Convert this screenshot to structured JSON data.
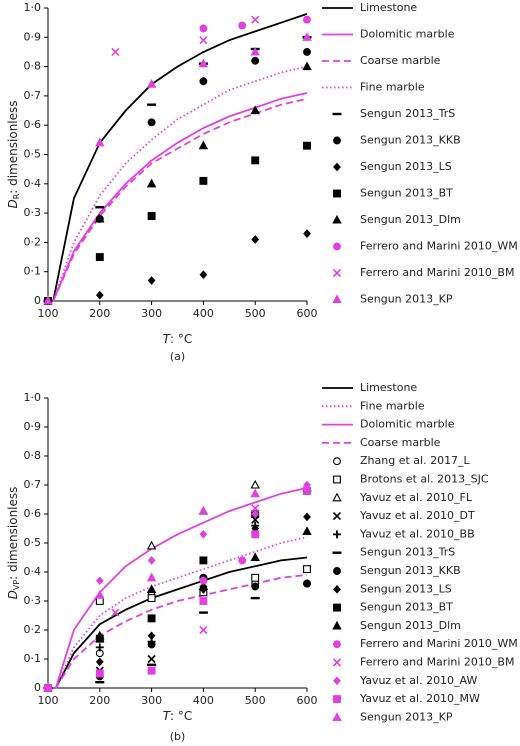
{
  "chart_data": [
    {
      "type": "scatter",
      "y_label": {
        "symbol": "D",
        "subscript": "R",
        "text": ": dimensionless"
      },
      "x_label": {
        "symbol": "T",
        "text": ": °C"
      },
      "caption": "(a)",
      "xlim": [
        100,
        600
      ],
      "ylim": [
        0,
        1
      ],
      "xticks": [
        100,
        200,
        300,
        400,
        500,
        600
      ],
      "yticks": [
        0,
        {
          "value": 0.1,
          "label": "0·1"
        },
        {
          "value": 0.2,
          "label": "0·2"
        },
        {
          "value": 0.3,
          "label": "0·3"
        },
        {
          "value": 0.4,
          "label": "0·4"
        },
        {
          "value": 0.5,
          "label": "0·5"
        },
        {
          "value": 0.6,
          "label": "0·6"
        },
        {
          "value": 0.7,
          "label": "0·7"
        },
        {
          "value": 0.8,
          "label": "0·8"
        },
        {
          "value": 0.9,
          "label": "0·9"
        },
        {
          "value": 1,
          "label": "1·0"
        }
      ],
      "series": [
        {
          "name": "Limestone",
          "color": "#000000",
          "style": "line",
          "dash": "solid",
          "x": [
            110,
            150,
            200,
            250,
            300,
            350,
            400,
            450,
            500,
            550,
            600
          ],
          "values": [
            0,
            0.35,
            0.54,
            0.65,
            0.74,
            0.8,
            0.85,
            0.89,
            0.92,
            0.95,
            0.98
          ]
        },
        {
          "name": "Dolomitic marble",
          "color": "#e040e0",
          "style": "line",
          "dash": "solid",
          "x": [
            110,
            150,
            200,
            250,
            300,
            350,
            400,
            450,
            500,
            550,
            600
          ],
          "values": [
            0,
            0.17,
            0.3,
            0.4,
            0.48,
            0.54,
            0.59,
            0.63,
            0.66,
            0.69,
            0.71
          ]
        },
        {
          "name": "Coarse marble",
          "color": "#e040e0",
          "style": "line",
          "dash": "dashed",
          "x": [
            110,
            150,
            200,
            250,
            300,
            350,
            400,
            450,
            500,
            550,
            600
          ],
          "values": [
            0,
            0.16,
            0.29,
            0.39,
            0.47,
            0.52,
            0.57,
            0.61,
            0.64,
            0.67,
            0.69
          ]
        },
        {
          "name": "Fine marble",
          "color": "#e040e0",
          "style": "line",
          "dash": "dotted",
          "x": [
            110,
            150,
            200,
            250,
            300,
            350,
            400,
            450,
            500,
            550,
            600
          ],
          "values": [
            0,
            0.2,
            0.36,
            0.47,
            0.55,
            0.62,
            0.67,
            0.72,
            0.75,
            0.78,
            0.8
          ]
        },
        {
          "name": "Sengun 2013_TrS",
          "color": "#000000",
          "marker": "dash",
          "filled": true,
          "x": [
            100,
            200,
            300,
            400,
            500,
            600
          ],
          "values": [
            0,
            0.32,
            0.67,
            0.81,
            0.86,
            0.9
          ]
        },
        {
          "name": "Sengun 2013_KKB",
          "color": "#000000",
          "marker": "circle",
          "filled": true,
          "x": [
            100,
            200,
            300,
            400,
            500,
            600
          ],
          "values": [
            0,
            0.28,
            0.61,
            0.75,
            0.82,
            0.85
          ]
        },
        {
          "name": "Sengun 2013_LS",
          "color": "#000000",
          "marker": "diamond",
          "filled": true,
          "x": [
            100,
            200,
            300,
            400,
            500,
            600
          ],
          "values": [
            0,
            0.02,
            0.07,
            0.09,
            0.21,
            0.23
          ]
        },
        {
          "name": "Sengun 2013_BT",
          "color": "#000000",
          "marker": "square",
          "filled": true,
          "x": [
            100,
            200,
            300,
            400,
            500,
            600
          ],
          "values": [
            0,
            0.15,
            0.29,
            0.41,
            0.48,
            0.53
          ]
        },
        {
          "name": "Sengun 2013_Dlm",
          "color": "#000000",
          "marker": "triangle",
          "filled": true,
          "x": [
            100,
            200,
            300,
            400,
            500,
            600
          ],
          "values": [
            0,
            0.28,
            0.4,
            0.53,
            0.65,
            0.8
          ]
        },
        {
          "name": "Ferrero and Marini 2010_WM",
          "color": "#e040e0",
          "marker": "circle",
          "filled": true,
          "x": [
            400,
            475,
            600
          ],
          "values": [
            0.93,
            0.94,
            0.96
          ]
        },
        {
          "name": "Ferrero and Marini 2010_BM",
          "color": "#e040e0",
          "marker": "x",
          "filled": true,
          "x": [
            230,
            400,
            500
          ],
          "values": [
            0.85,
            0.89,
            0.96
          ]
        },
        {
          "name": "Sengun 2013_KP",
          "color": "#e040e0",
          "marker": "triangle",
          "filled": true,
          "x": [
            100,
            200,
            300,
            400,
            500,
            600
          ],
          "values": [
            0,
            0.54,
            0.74,
            0.81,
            0.85,
            0.9
          ]
        }
      ]
    },
    {
      "type": "scatter",
      "y_label": {
        "symbol": "D",
        "subscript": "VP",
        "text": ": dimensionless"
      },
      "x_label": {
        "symbol": "T",
        "text": ": °C"
      },
      "caption": "(b)",
      "xlim": [
        100,
        600
      ],
      "ylim": [
        0,
        1
      ],
      "xticks": [
        100,
        200,
        300,
        400,
        500,
        600
      ],
      "yticks": [
        0,
        {
          "value": 0.1,
          "label": "0·1"
        },
        {
          "value": 0.2,
          "label": "0·2"
        },
        {
          "value": 0.3,
          "label": "0·3"
        },
        {
          "value": 0.4,
          "label": "0·4"
        },
        {
          "value": 0.5,
          "label": "0·5"
        },
        {
          "value": 0.6,
          "label": "0·6"
        },
        {
          "value": 0.7,
          "label": "0·7"
        },
        {
          "value": 0.8,
          "label": "0·8"
        },
        {
          "value": 0.9,
          "label": "0·9"
        },
        {
          "value": 1,
          "label": "1·0"
        }
      ],
      "series": [
        {
          "name": "Limestone",
          "color": "#000000",
          "style": "line",
          "dash": "solid",
          "x": [
            115,
            150,
            200,
            250,
            300,
            350,
            400,
            450,
            500,
            550,
            600
          ],
          "values": [
            0,
            0.12,
            0.22,
            0.27,
            0.31,
            0.34,
            0.37,
            0.4,
            0.42,
            0.44,
            0.45
          ]
        },
        {
          "name": "Fine marble",
          "color": "#e040e0",
          "style": "line",
          "dash": "dotted",
          "x": [
            115,
            150,
            200,
            250,
            300,
            350,
            400,
            450,
            500,
            550,
            600
          ],
          "values": [
            0,
            0.14,
            0.25,
            0.31,
            0.35,
            0.38,
            0.41,
            0.44,
            0.47,
            0.5,
            0.52
          ]
        },
        {
          "name": "Dolomitic marble",
          "color": "#e040e0",
          "style": "line",
          "dash": "solid",
          "x": [
            115,
            150,
            200,
            250,
            300,
            350,
            400,
            450,
            500,
            550,
            600
          ],
          "values": [
            0,
            0.2,
            0.33,
            0.42,
            0.48,
            0.53,
            0.57,
            0.61,
            0.64,
            0.67,
            0.69
          ]
        },
        {
          "name": "Coarse marble",
          "color": "#e040e0",
          "style": "line",
          "dash": "dashed",
          "x": [
            115,
            150,
            200,
            250,
            300,
            350,
            400,
            450,
            500,
            550,
            600
          ],
          "values": [
            0,
            0.1,
            0.18,
            0.23,
            0.27,
            0.3,
            0.32,
            0.34,
            0.36,
            0.38,
            0.39
          ]
        },
        {
          "name": "Zhang et al. 2017_L",
          "color": "#000000",
          "marker": "circle",
          "filled": false,
          "x": [
            100,
            200,
            300,
            400,
            500,
            600
          ],
          "values": [
            0,
            0.12,
            0.32,
            0.38,
            0.36,
            0.36
          ]
        },
        {
          "name": "Brotons et al. 2013_SJC",
          "color": "#000000",
          "marker": "square",
          "filled": false,
          "x": [
            100,
            200,
            300,
            400,
            500,
            600
          ],
          "values": [
            0,
            0.3,
            0.31,
            0.33,
            0.38,
            0.41
          ]
        },
        {
          "name": "Yavuz et al. 2010_FL",
          "color": "#000000",
          "marker": "triangle",
          "filled": false,
          "x": [
            100,
            200,
            300,
            400,
            500,
            600
          ],
          "values": [
            0,
            0.17,
            0.49,
            0.61,
            0.7,
            0.69
          ]
        },
        {
          "name": "Yavuz et al. 2010_DT",
          "color": "#000000",
          "marker": "x",
          "filled": true,
          "x": [
            100,
            200,
            300,
            400,
            500
          ],
          "values": [
            0,
            0.06,
            0.1,
            0.36,
            0.58
          ]
        },
        {
          "name": "Yavuz et al. 2010_BB",
          "color": "#000000",
          "marker": "plus",
          "filled": true,
          "x": [
            100,
            200,
            300,
            400,
            500
          ],
          "values": [
            0,
            0.14,
            0.16,
            0.34,
            0.56
          ]
        },
        {
          "name": "Sengun 2013_TrS",
          "color": "#000000",
          "marker": "dash",
          "filled": true,
          "x": [
            100,
            200,
            300,
            400,
            500
          ],
          "values": [
            0,
            0.02,
            0.08,
            0.26,
            0.31
          ]
        },
        {
          "name": "Sengun 2013_KKB",
          "color": "#000000",
          "marker": "circle",
          "filled": true,
          "x": [
            100,
            200,
            300,
            400,
            500,
            600
          ],
          "values": [
            0,
            0.04,
            0.15,
            0.38,
            0.35,
            0.36
          ]
        },
        {
          "name": "Sengun 2013_LS",
          "color": "#000000",
          "marker": "diamond",
          "filled": true,
          "x": [
            100,
            200,
            300,
            400,
            500,
            600
          ],
          "values": [
            0,
            0.09,
            0.18,
            0.34,
            0.55,
            0.59
          ]
        },
        {
          "name": "Sengun 2013_BT",
          "color": "#000000",
          "marker": "square",
          "filled": true,
          "x": [
            100,
            200,
            300,
            400,
            500,
            600
          ],
          "values": [
            0,
            0.17,
            0.24,
            0.44,
            0.6,
            0.68
          ]
        },
        {
          "name": "Sengun 2013_Dlm",
          "color": "#000000",
          "marker": "triangle",
          "filled": true,
          "x": [
            100,
            200,
            300,
            400,
            500,
            600
          ],
          "values": [
            0,
            0.18,
            0.34,
            0.35,
            0.45,
            0.54
          ]
        },
        {
          "name": "Ferrero and Marini 2010_WM",
          "color": "#e040e0",
          "marker": "circle",
          "filled": true,
          "x": [
            400,
            475,
            600
          ],
          "values": [
            0.37,
            0.44,
            0.68
          ]
        },
        {
          "name": "Ferrero and Marini 2010_BM",
          "color": "#e040e0",
          "marker": "x",
          "filled": true,
          "x": [
            230,
            400,
            500
          ],
          "values": [
            0.26,
            0.2,
            0.62
          ]
        },
        {
          "name": "Yavuz et al. 2010_AW",
          "color": "#e040e0",
          "marker": "diamond",
          "filled": true,
          "x": [
            100,
            200,
            300,
            400,
            500,
            600
          ],
          "values": [
            0,
            0.37,
            0.44,
            0.53,
            0.6,
            0.7
          ]
        },
        {
          "name": "Yavuz et al. 2010_MW",
          "color": "#e040e0",
          "marker": "square",
          "filled": true,
          "x": [
            100,
            200,
            300,
            400,
            500,
            600
          ],
          "values": [
            0,
            0.05,
            0.06,
            0.3,
            0.53,
            0.68
          ]
        },
        {
          "name": "Sengun 2013_KP",
          "color": "#e040e0",
          "marker": "triangle",
          "filled": true,
          "x": [
            100,
            200,
            300,
            400,
            500
          ],
          "values": [
            0,
            0.32,
            0.38,
            0.61,
            0.67
          ]
        }
      ]
    }
  ]
}
